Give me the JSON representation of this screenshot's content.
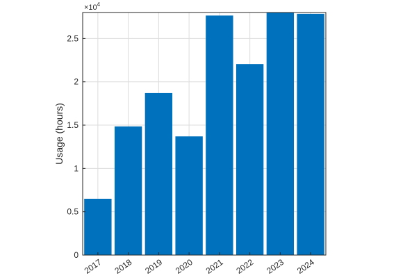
{
  "chart_data": {
    "type": "bar",
    "categories": [
      "2017",
      "2018",
      "2019",
      "2020",
      "2021",
      "2022",
      "2023",
      "2024"
    ],
    "values": [
      6500,
      14850,
      18700,
      13700,
      27650,
      22050,
      28000,
      27850
    ],
    "ylabel": "Usage (hours)",
    "xlabel": "",
    "title": "",
    "ylim": [
      0,
      28000
    ],
    "yticks": [
      0,
      0.5,
      1,
      1.5,
      2,
      2.5
    ],
    "yticks_scaled_values": [
      0,
      5000,
      10000,
      15000,
      20000,
      25000
    ],
    "exponent_base": "×10",
    "exponent_power": "4",
    "grid": true,
    "bar_color": "#0072BD",
    "grid_color": "#dcdcdc",
    "axis_color": "#262626"
  }
}
